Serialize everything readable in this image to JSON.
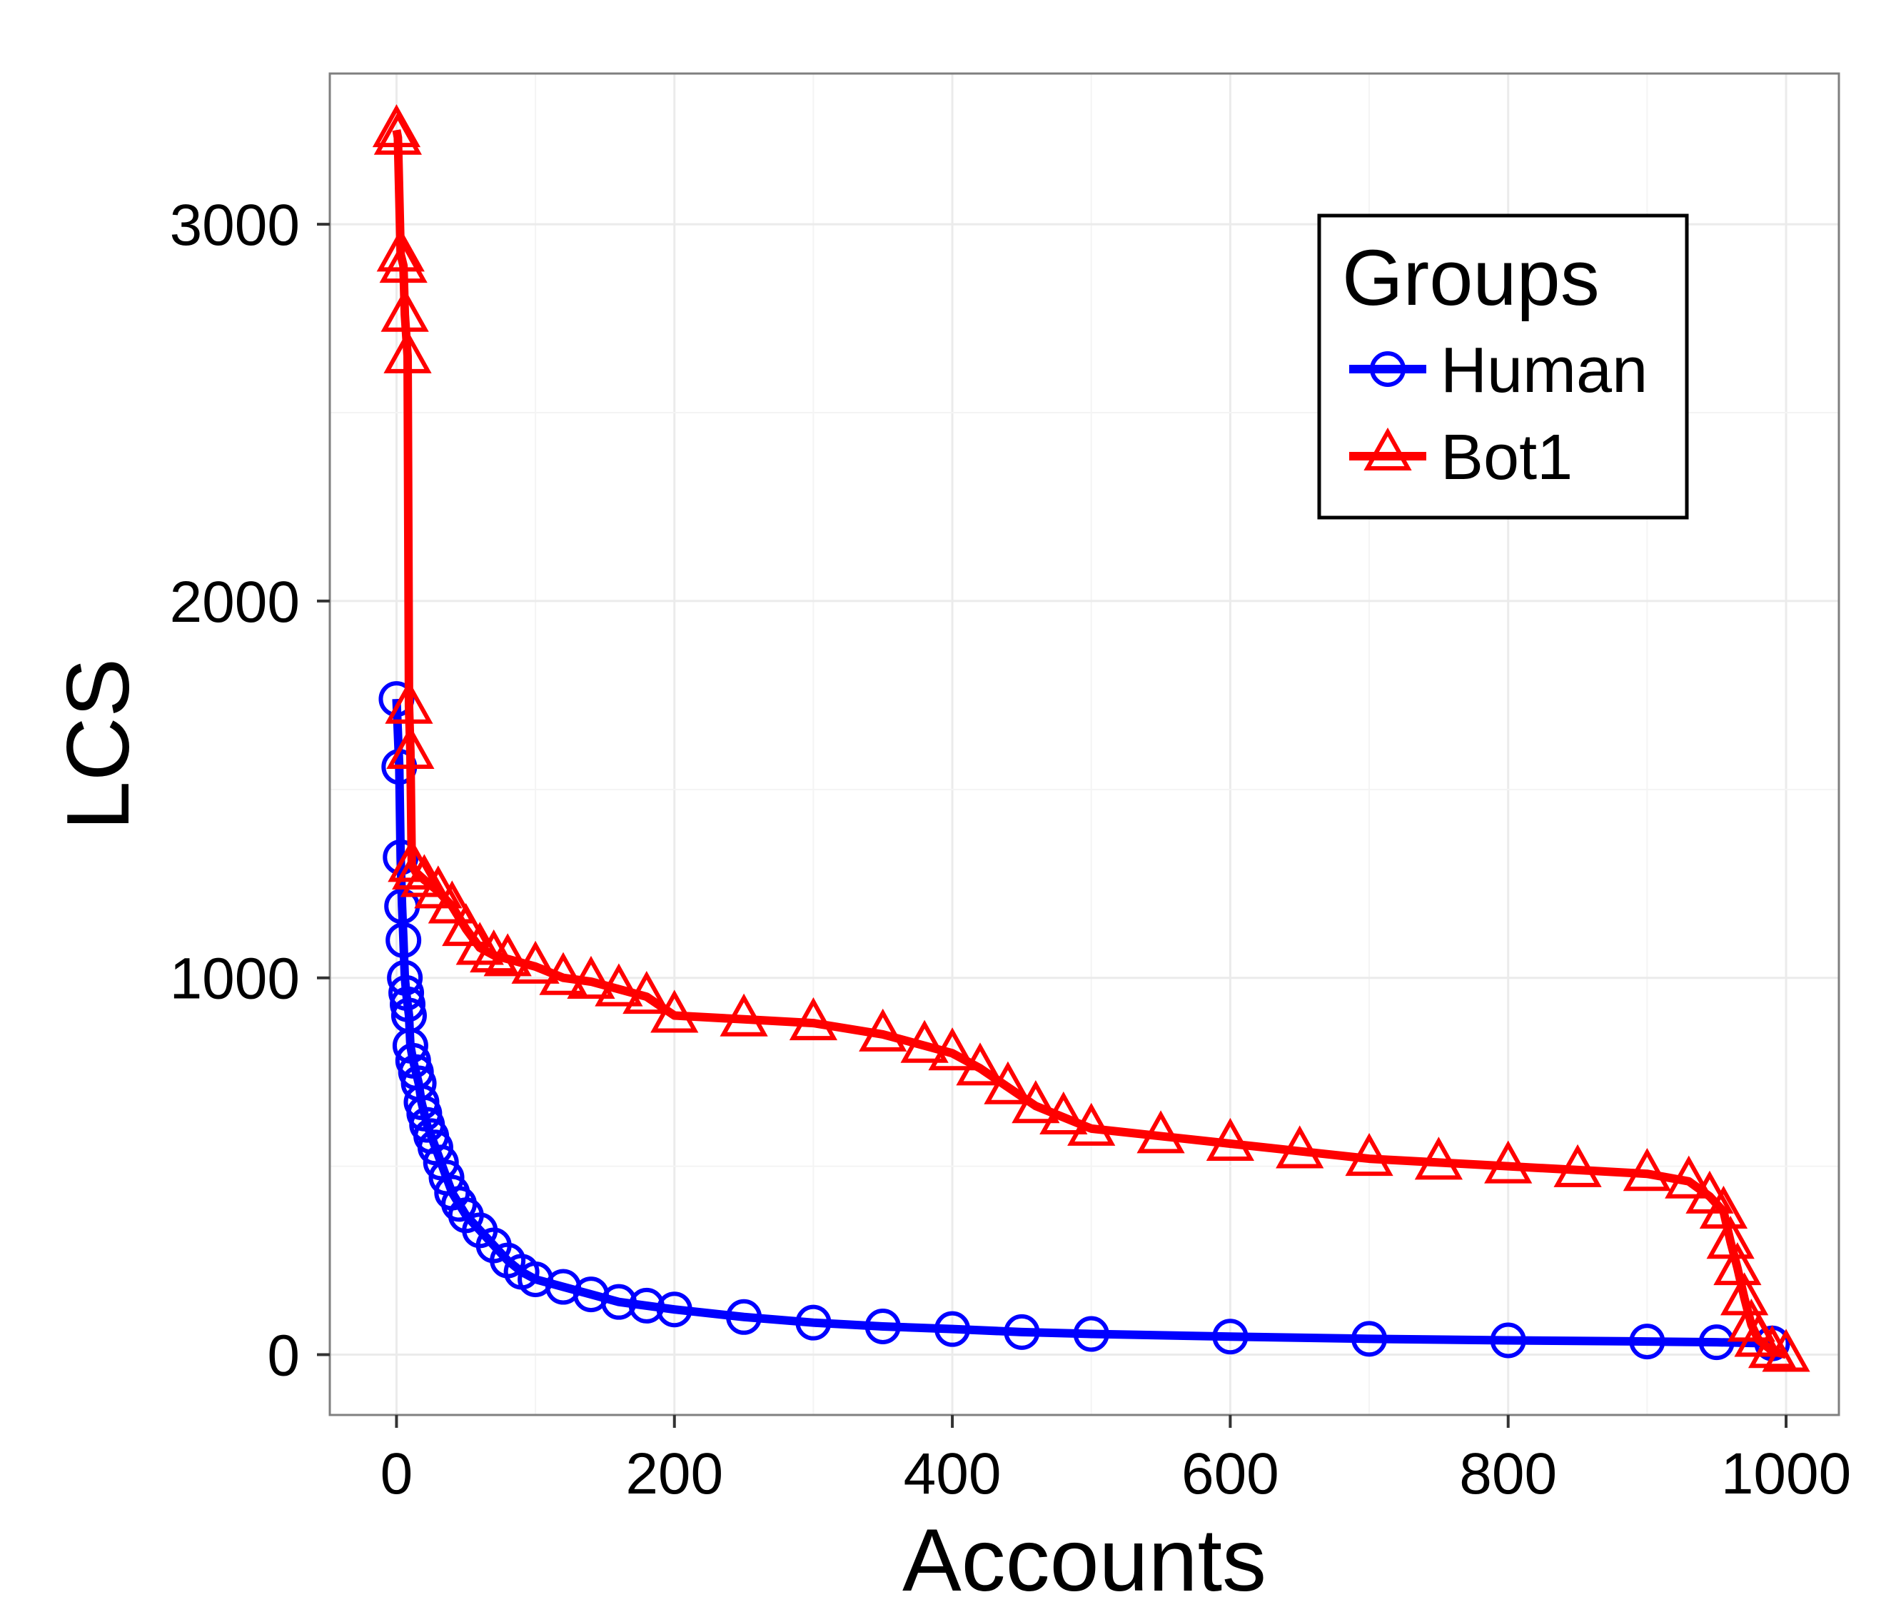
{
  "chart_data": {
    "type": "line",
    "title": "",
    "xlabel": "Accounts",
    "ylabel": "LCS",
    "xlim": [
      -48,
      1038
    ],
    "ylim": [
      -160,
      3400
    ],
    "x_ticks": [
      0,
      200,
      400,
      600,
      800,
      1000
    ],
    "y_ticks": [
      0,
      1000,
      2000,
      3000
    ],
    "x_tick_labels": [
      "0",
      "200",
      "400",
      "600",
      "800",
      "1000"
    ],
    "y_tick_labels": [
      "0",
      "1000",
      "2000",
      "3000"
    ],
    "grid": true,
    "legend": {
      "title": "Groups",
      "placement": "top-right"
    },
    "series": [
      {
        "name": "Human",
        "color": "#0000ff",
        "marker": "circle",
        "points": [
          [
            0,
            1740
          ],
          [
            2,
            1560
          ],
          [
            3,
            1320
          ],
          [
            4,
            1190
          ],
          [
            5,
            1100
          ],
          [
            6,
            1000
          ],
          [
            7,
            960
          ],
          [
            8,
            930
          ],
          [
            9,
            900
          ],
          [
            10,
            820
          ],
          [
            12,
            780
          ],
          [
            14,
            750
          ],
          [
            16,
            720
          ],
          [
            18,
            670
          ],
          [
            20,
            640
          ],
          [
            22,
            610
          ],
          [
            25,
            580
          ],
          [
            28,
            550
          ],
          [
            32,
            510
          ],
          [
            36,
            470
          ],
          [
            40,
            430
          ],
          [
            45,
            400
          ],
          [
            50,
            370
          ],
          [
            60,
            330
          ],
          [
            70,
            290
          ],
          [
            80,
            250
          ],
          [
            90,
            220
          ],
          [
            100,
            200
          ],
          [
            120,
            180
          ],
          [
            140,
            160
          ],
          [
            160,
            140
          ],
          [
            180,
            130
          ],
          [
            200,
            120
          ],
          [
            250,
            100
          ],
          [
            300,
            85
          ],
          [
            350,
            75
          ],
          [
            400,
            68
          ],
          [
            450,
            60
          ],
          [
            500,
            55
          ],
          [
            600,
            48
          ],
          [
            700,
            42
          ],
          [
            800,
            38
          ],
          [
            900,
            35
          ],
          [
            950,
            33
          ],
          [
            990,
            30
          ]
        ]
      },
      {
        "name": "Bot1",
        "color": "#ff0000",
        "marker": "triangle",
        "points": [
          [
            0,
            3250
          ],
          [
            1,
            3230
          ],
          [
            3,
            2920
          ],
          [
            5,
            2890
          ],
          [
            6,
            2760
          ],
          [
            8,
            2650
          ],
          [
            9,
            1720
          ],
          [
            10,
            1600
          ],
          [
            11,
            1300
          ],
          [
            14,
            1280
          ],
          [
            20,
            1260
          ],
          [
            30,
            1230
          ],
          [
            40,
            1190
          ],
          [
            50,
            1130
          ],
          [
            60,
            1080
          ],
          [
            70,
            1060
          ],
          [
            80,
            1050
          ],
          [
            100,
            1030
          ],
          [
            120,
            1000
          ],
          [
            140,
            990
          ],
          [
            160,
            970
          ],
          [
            180,
            950
          ],
          [
            200,
            900
          ],
          [
            250,
            890
          ],
          [
            300,
            880
          ],
          [
            350,
            850
          ],
          [
            380,
            820
          ],
          [
            400,
            800
          ],
          [
            420,
            760
          ],
          [
            440,
            710
          ],
          [
            460,
            660
          ],
          [
            480,
            630
          ],
          [
            500,
            600
          ],
          [
            550,
            580
          ],
          [
            600,
            560
          ],
          [
            650,
            540
          ],
          [
            700,
            520
          ],
          [
            750,
            510
          ],
          [
            800,
            500
          ],
          [
            850,
            490
          ],
          [
            900,
            480
          ],
          [
            930,
            460
          ],
          [
            945,
            420
          ],
          [
            955,
            380
          ],
          [
            960,
            300
          ],
          [
            965,
            230
          ],
          [
            970,
            150
          ],
          [
            975,
            80
          ],
          [
            980,
            40
          ],
          [
            990,
            10
          ],
          [
            1000,
            0
          ]
        ]
      }
    ]
  }
}
